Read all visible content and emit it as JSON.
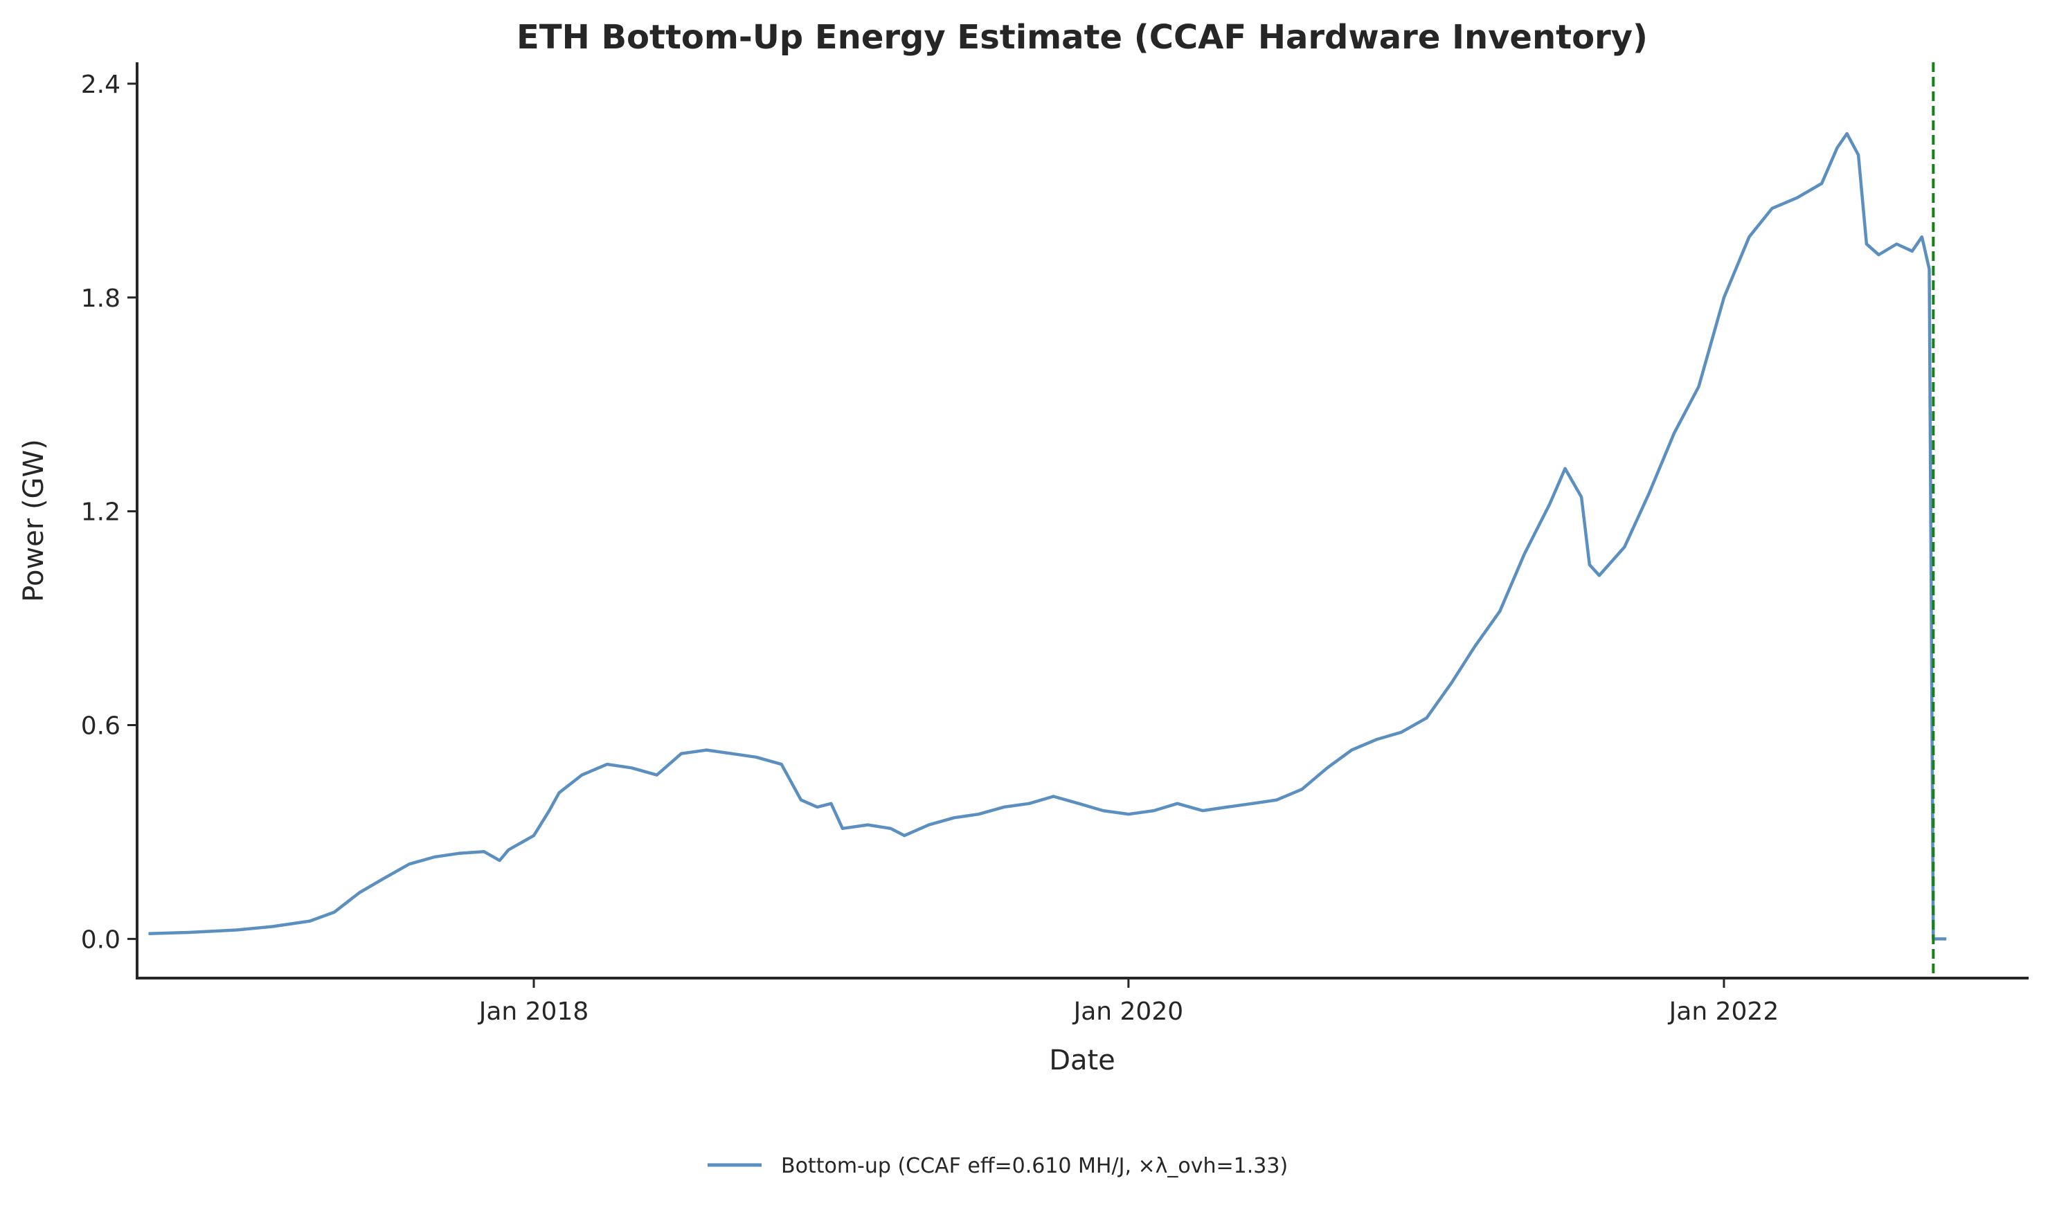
{
  "chart_data": {
    "type": "line",
    "title": "ETH Bottom-Up Energy Estimate (CCAF Hardware Inventory)",
    "xlabel": "Date",
    "ylabel": "Power (GW)",
    "xlim": [
      "2016-09-01",
      "2023-01-10"
    ],
    "ylim": [
      -0.11,
      2.46
    ],
    "xticks": [
      {
        "date": "2018-01-01",
        "label": "Jan 2018"
      },
      {
        "date": "2020-01-01",
        "label": "Jan 2020"
      },
      {
        "date": "2022-01-01",
        "label": "Jan 2022"
      }
    ],
    "yticks": [
      {
        "value": 0.0,
        "label": "0.0"
      },
      {
        "value": 0.6,
        "label": "0.6"
      },
      {
        "value": 1.2,
        "label": "1.2"
      },
      {
        "value": 1.8,
        "label": "1.8"
      },
      {
        "value": 2.4,
        "label": "2.4"
      }
    ],
    "grid": false,
    "legend_position": "bottom-center",
    "series": [
      {
        "name": "Bottom-up (CCAF eff=0.610 MH/J, ×λ_ovh=1.33)",
        "color": "#5b8fbf",
        "points": [
          [
            "2016-09-15",
            0.015
          ],
          [
            "2016-11-01",
            0.018
          ],
          [
            "2017-01-01",
            0.025
          ],
          [
            "2017-02-15",
            0.035
          ],
          [
            "2017-04-01",
            0.05
          ],
          [
            "2017-05-01",
            0.075
          ],
          [
            "2017-06-01",
            0.13
          ],
          [
            "2017-07-01",
            0.17
          ],
          [
            "2017-08-01",
            0.21
          ],
          [
            "2017-09-01",
            0.23
          ],
          [
            "2017-10-01",
            0.24
          ],
          [
            "2017-11-01",
            0.245
          ],
          [
            "2017-11-20",
            0.22
          ],
          [
            "2017-12-01",
            0.25
          ],
          [
            "2018-01-01",
            0.29
          ],
          [
            "2018-01-20",
            0.36
          ],
          [
            "2018-02-01",
            0.41
          ],
          [
            "2018-03-01",
            0.46
          ],
          [
            "2018-04-01",
            0.49
          ],
          [
            "2018-05-01",
            0.48
          ],
          [
            "2018-06-01",
            0.46
          ],
          [
            "2018-07-01",
            0.52
          ],
          [
            "2018-08-01",
            0.53
          ],
          [
            "2018-09-01",
            0.52
          ],
          [
            "2018-10-01",
            0.51
          ],
          [
            "2018-11-01",
            0.49
          ],
          [
            "2018-11-25",
            0.39
          ],
          [
            "2018-12-15",
            0.37
          ],
          [
            "2019-01-01",
            0.38
          ],
          [
            "2019-01-15",
            0.31
          ],
          [
            "2019-02-15",
            0.32
          ],
          [
            "2019-03-15",
            0.31
          ],
          [
            "2019-04-01",
            0.29
          ],
          [
            "2019-05-01",
            0.32
          ],
          [
            "2019-06-01",
            0.34
          ],
          [
            "2019-07-01",
            0.35
          ],
          [
            "2019-08-01",
            0.37
          ],
          [
            "2019-09-01",
            0.38
          ],
          [
            "2019-10-01",
            0.4
          ],
          [
            "2019-11-01",
            0.38
          ],
          [
            "2019-12-01",
            0.36
          ],
          [
            "2020-01-01",
            0.35
          ],
          [
            "2020-02-01",
            0.36
          ],
          [
            "2020-03-01",
            0.38
          ],
          [
            "2020-04-01",
            0.36
          ],
          [
            "2020-05-01",
            0.37
          ],
          [
            "2020-06-01",
            0.38
          ],
          [
            "2020-07-01",
            0.39
          ],
          [
            "2020-08-01",
            0.42
          ],
          [
            "2020-09-01",
            0.48
          ],
          [
            "2020-10-01",
            0.53
          ],
          [
            "2020-11-01",
            0.56
          ],
          [
            "2020-12-01",
            0.58
          ],
          [
            "2021-01-01",
            0.62
          ],
          [
            "2021-02-01",
            0.72
          ],
          [
            "2021-03-01",
            0.82
          ],
          [
            "2021-04-01",
            0.92
          ],
          [
            "2021-05-01",
            1.08
          ],
          [
            "2021-06-01",
            1.22
          ],
          [
            "2021-06-20",
            1.32
          ],
          [
            "2021-07-10",
            1.24
          ],
          [
            "2021-07-20",
            1.05
          ],
          [
            "2021-08-01",
            1.02
          ],
          [
            "2021-09-01",
            1.1
          ],
          [
            "2021-10-01",
            1.25
          ],
          [
            "2021-11-01",
            1.42
          ],
          [
            "2021-12-01",
            1.55
          ],
          [
            "2022-01-01",
            1.8
          ],
          [
            "2022-02-01",
            1.97
          ],
          [
            "2022-03-01",
            2.05
          ],
          [
            "2022-04-01",
            2.08
          ],
          [
            "2022-05-01",
            2.12
          ],
          [
            "2022-05-20",
            2.22
          ],
          [
            "2022-06-01",
            2.26
          ],
          [
            "2022-06-15",
            2.2
          ],
          [
            "2022-06-25",
            1.95
          ],
          [
            "2022-07-10",
            1.92
          ],
          [
            "2022-08-01",
            1.95
          ],
          [
            "2022-08-20",
            1.93
          ],
          [
            "2022-09-01",
            1.97
          ],
          [
            "2022-09-10",
            1.88
          ],
          [
            "2022-09-15",
            0.0
          ],
          [
            "2022-10-01",
            0.0
          ]
        ]
      }
    ],
    "annotations": [
      {
        "type": "vline",
        "date": "2022-09-15",
        "color": "#1a7f1a",
        "style": "dashed"
      }
    ]
  }
}
